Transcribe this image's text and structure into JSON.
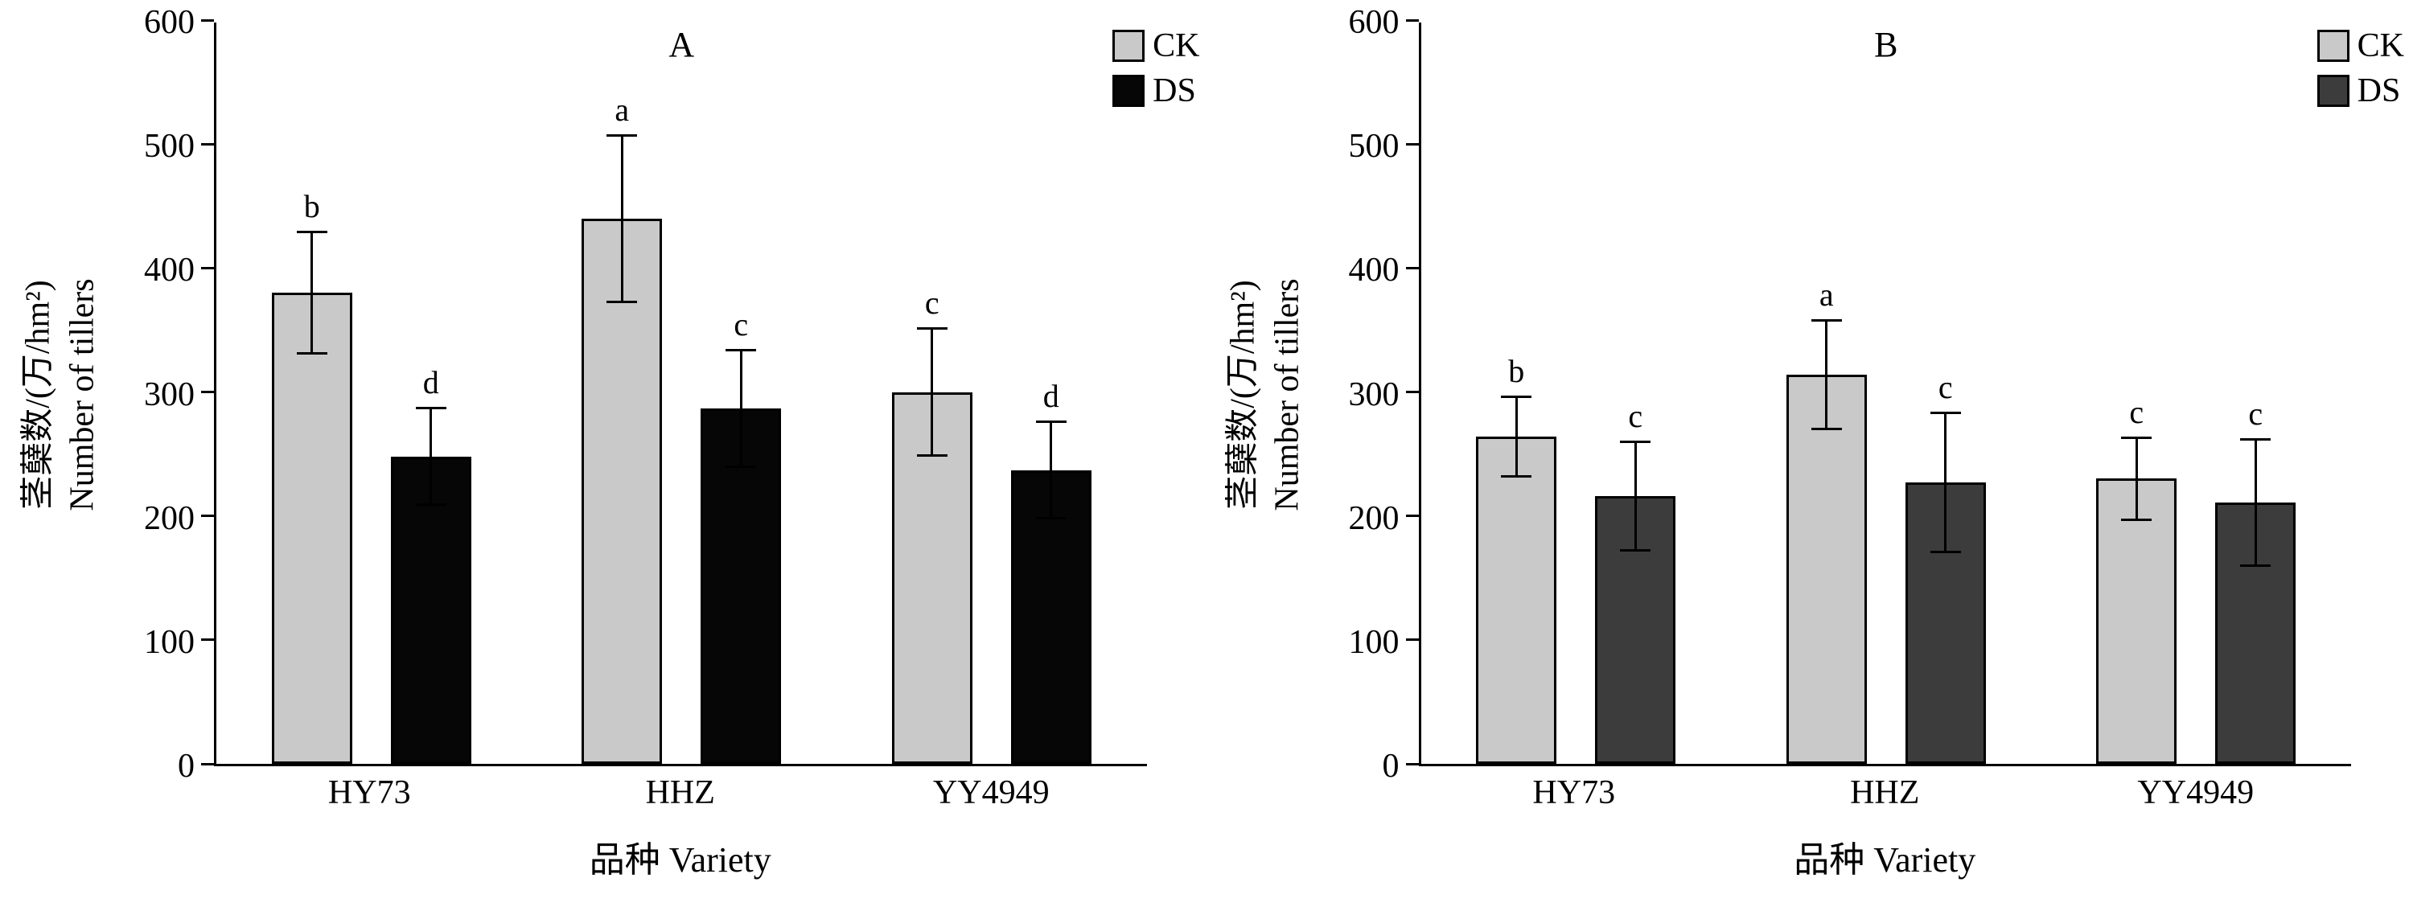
{
  "chart_data": [
    {
      "type": "bar",
      "panel_label": "A",
      "title": "",
      "ylabel_cn": "茎蘖数/(万/hm²)",
      "ylabel_en": "Number of tillers",
      "xlabel": "品种 Variety",
      "categories": [
        "HY73",
        "HHZ",
        "YY4949"
      ],
      "series": [
        {
          "name": "CK",
          "color": "#c9c9c9",
          "values": [
            380,
            440,
            300
          ],
          "errors": [
            50,
            68,
            52
          ],
          "sig_letters": [
            "b",
            "a",
            "c"
          ]
        },
        {
          "name": "DS",
          "color": "#060606",
          "values": [
            248,
            287,
            237
          ],
          "errors": [
            40,
            48,
            40
          ],
          "sig_letters": [
            "d",
            "c",
            "d"
          ]
        }
      ],
      "ylim": [
        0,
        600
      ],
      "yticks": [
        0,
        100,
        200,
        300,
        400,
        500,
        600
      ],
      "grid": false,
      "legend_position": "top-right"
    },
    {
      "type": "bar",
      "panel_label": "B",
      "title": "",
      "ylabel_cn": "茎蘖数/(万/hm²)",
      "ylabel_en": "Number of tillers",
      "xlabel": "品种 Variety",
      "categories": [
        "HY73",
        "HHZ",
        "YY4949"
      ],
      "series": [
        {
          "name": "CK",
          "color": "#c9c9c9",
          "values": [
            264,
            314,
            230
          ],
          "errors": [
            33,
            45,
            34
          ],
          "sig_letters": [
            "b",
            "a",
            "c"
          ]
        },
        {
          "name": "DS",
          "color": "#3c3c3c",
          "values": [
            216,
            227,
            211
          ],
          "errors": [
            45,
            57,
            52
          ],
          "sig_letters": [
            "c",
            "c",
            "c"
          ]
        }
      ],
      "ylim": [
        0,
        600
      ],
      "yticks": [
        0,
        100,
        200,
        300,
        400,
        500,
        600
      ],
      "grid": false,
      "legend_position": "top-right"
    }
  ]
}
